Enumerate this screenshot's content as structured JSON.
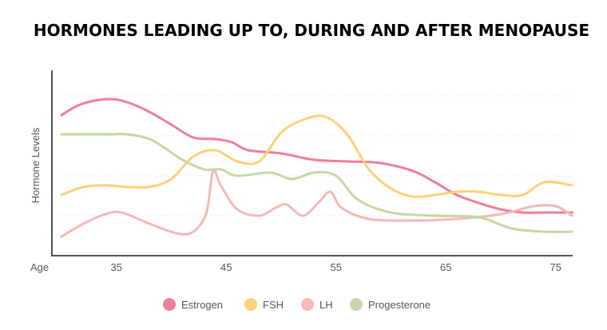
{
  "chart_data": {
    "type": "line",
    "title": "HORMONES LEADING UP TO, DURING AND AFTER MENOPAUSE",
    "xlabel": "Age",
    "ylabel": "Hormone Levels",
    "xticks": [
      35,
      45,
      55,
      65,
      75
    ],
    "xlim": [
      30,
      77
    ],
    "ylim": [
      0,
      100
    ],
    "grid": true,
    "legend": "bottom",
    "series": [
      {
        "name": "Estrogen",
        "color": "#ee7f98",
        "x": [
          30,
          31.5,
          33,
          34.5,
          36,
          38,
          40,
          42,
          44,
          45.5,
          47,
          50,
          53,
          56,
          59,
          62,
          64,
          66,
          68,
          70,
          72,
          74,
          76.5
        ],
        "y": [
          88,
          94,
          97,
          98,
          96,
          90,
          82,
          74,
          73,
          71,
          66,
          64,
          60,
          59,
          58,
          53,
          46,
          38,
          33,
          29,
          27,
          27,
          27
        ]
      },
      {
        "name": "FSH",
        "color": "#fdd079",
        "x": [
          30,
          32,
          34,
          36,
          38,
          40,
          42,
          44,
          46,
          48,
          50,
          52,
          54,
          56,
          58,
          60,
          62,
          64,
          66,
          68,
          70,
          72,
          74,
          76.5
        ],
        "y": [
          38,
          43,
          44,
          43,
          43,
          48,
          62,
          66,
          59,
          59,
          77,
          85,
          87,
          76,
          54,
          42,
          37,
          38,
          40,
          40,
          38,
          38,
          46,
          44
        ]
      },
      {
        "name": "LH",
        "color": "#f6b8b8",
        "x": [
          30,
          32,
          34,
          35.5,
          38,
          40.5,
          42,
          43.2,
          43.8,
          44.5,
          46,
          48,
          49.5,
          50.5,
          52,
          53.5,
          54.5,
          55.5,
          58,
          62,
          66,
          70,
          73,
          75,
          76.5
        ],
        "y": [
          12,
          20,
          26,
          27,
          20,
          14,
          15,
          27,
          53,
          44,
          29,
          25,
          30,
          32,
          25,
          34,
          40,
          30,
          23,
          22,
          23,
          26,
          31,
          31,
          25
        ]
      },
      {
        "name": "Progesterone",
        "color": "#c6d7a5",
        "x": [
          30,
          32.5,
          34.5,
          36,
          38,
          39.5,
          41,
          43,
          44.5,
          46,
          49,
          51,
          53,
          55,
          57,
          60,
          64,
          68,
          71,
          74,
          76.5
        ],
        "y": [
          76,
          76,
          76,
          76,
          73,
          67,
          60,
          54,
          54,
          50,
          52,
          48,
          52,
          50,
          35,
          27,
          25,
          24,
          17,
          15,
          15
        ]
      }
    ]
  }
}
